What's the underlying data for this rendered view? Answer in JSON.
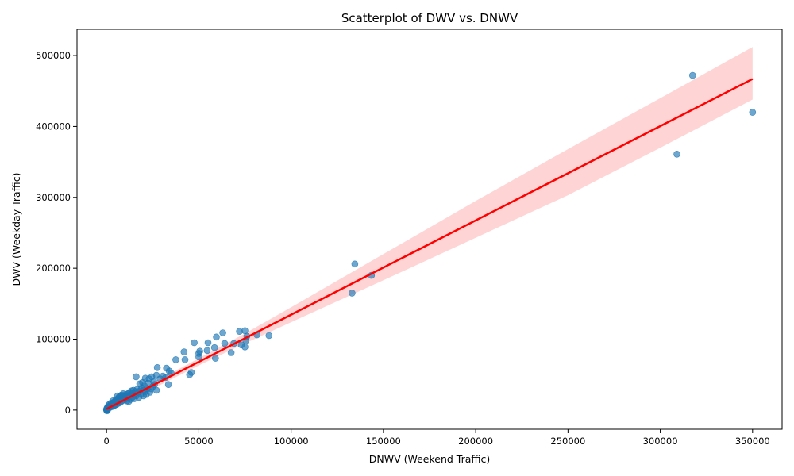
{
  "chart_data": {
    "type": "scatter",
    "title": "Scatterplot of DWV vs. DNWV",
    "xlabel": "DNWV (Weekend Traffic)",
    "ylabel": "DWV (Weekday Traffic)",
    "xlim": [
      -16000,
      366000
    ],
    "ylim": [
      -27000,
      537000
    ],
    "xticks": [
      0,
      50000,
      100000,
      150000,
      200000,
      250000,
      300000,
      350000
    ],
    "xtick_labels": [
      "0",
      "50000",
      "100000",
      "150000",
      "200000",
      "250000",
      "300000",
      "350000"
    ],
    "yticks": [
      0,
      100000,
      200000,
      300000,
      400000,
      500000
    ],
    "ytick_labels": [
      "0",
      "100000",
      "200000",
      "300000",
      "400000",
      "500000"
    ],
    "grid": false,
    "colors": {
      "points": "#1f77b4",
      "regression": "#ff0000",
      "confidence_band": "#ffcccc"
    },
    "regression": {
      "slope": 1.33,
      "intercept": 1500,
      "x_range": [
        0,
        350000
      ]
    },
    "confidence_band": [
      {
        "x": 0,
        "lower": -1500,
        "upper": 4500
      },
      {
        "x": 25000,
        "lower": 30000,
        "upper": 38000
      },
      {
        "x": 50000,
        "lower": 63000,
        "upper": 73000
      },
      {
        "x": 75000,
        "lower": 94000,
        "upper": 108000
      },
      {
        "x": 100000,
        "lower": 124000,
        "upper": 145000
      },
      {
        "x": 150000,
        "lower": 183000,
        "upper": 220000
      },
      {
        "x": 200000,
        "lower": 243000,
        "upper": 295000
      },
      {
        "x": 250000,
        "lower": 303000,
        "upper": 368000
      },
      {
        "x": 300000,
        "lower": 370000,
        "upper": 440000
      },
      {
        "x": 350000,
        "lower": 438000,
        "upper": 512000
      }
    ],
    "points": [
      [
        350000,
        420000
      ],
      [
        317500,
        472000
      ],
      [
        309000,
        361000
      ],
      [
        143500,
        190000
      ],
      [
        134500,
        206000
      ],
      [
        133000,
        165000
      ],
      [
        88000,
        105000
      ],
      [
        81500,
        106000
      ],
      [
        76000,
        104000
      ],
      [
        75000,
        112000
      ],
      [
        75500,
        98000
      ],
      [
        75000,
        89000
      ],
      [
        73000,
        92000
      ],
      [
        72000,
        111000
      ],
      [
        69000,
        94000
      ],
      [
        67500,
        81000
      ],
      [
        64000,
        94000
      ],
      [
        63000,
        109000
      ],
      [
        59500,
        103000
      ],
      [
        59000,
        73000
      ],
      [
        58500,
        88000
      ],
      [
        55000,
        95000
      ],
      [
        54500,
        84000
      ],
      [
        50500,
        83000
      ],
      [
        50000,
        80000
      ],
      [
        50000,
        75000
      ],
      [
        47500,
        95000
      ],
      [
        46000,
        53000
      ],
      [
        45000,
        50000
      ],
      [
        42500,
        71000
      ],
      [
        42000,
        82000
      ],
      [
        37500,
        71000
      ],
      [
        35000,
        52000
      ],
      [
        34000,
        55000
      ],
      [
        33500,
        36000
      ],
      [
        32500,
        59000
      ],
      [
        32000,
        46000
      ],
      [
        30500,
        48000
      ],
      [
        29000,
        44000
      ],
      [
        27500,
        60000
      ],
      [
        27000,
        49000
      ],
      [
        27000,
        28000
      ],
      [
        26000,
        36000
      ],
      [
        25500,
        40000
      ],
      [
        25000,
        33000
      ],
      [
        24500,
        47000
      ],
      [
        24000,
        30000
      ],
      [
        23500,
        25000
      ],
      [
        23000,
        44000
      ],
      [
        22500,
        38000
      ],
      [
        22000,
        30000
      ],
      [
        21500,
        22000
      ],
      [
        21000,
        45000
      ],
      [
        21000,
        26000
      ],
      [
        20500,
        34000
      ],
      [
        20000,
        28000
      ],
      [
        20000,
        20000
      ],
      [
        19500,
        39000
      ],
      [
        19000,
        31000
      ],
      [
        18500,
        22000
      ],
      [
        18000,
        37000
      ],
      [
        18000,
        27000
      ],
      [
        17500,
        18000
      ],
      [
        17000,
        25000
      ],
      [
        16500,
        29000
      ],
      [
        16000,
        47000
      ],
      [
        16000,
        20000
      ],
      [
        15500,
        26000
      ],
      [
        15000,
        16000
      ],
      [
        15000,
        22000
      ],
      [
        14500,
        28000
      ],
      [
        14000,
        18000
      ],
      [
        14000,
        24000
      ],
      [
        13500,
        27000
      ],
      [
        13000,
        21000
      ],
      [
        13000,
        15000
      ],
      [
        12500,
        25000
      ],
      [
        12000,
        19000
      ],
      [
        12000,
        12000
      ],
      [
        11500,
        23000
      ],
      [
        11000,
        17000
      ],
      [
        11000,
        13000
      ],
      [
        10500,
        22000
      ],
      [
        10000,
        19000
      ],
      [
        10000,
        15000
      ],
      [
        9500,
        20000
      ],
      [
        9000,
        23000
      ],
      [
        9000,
        14000
      ],
      [
        8500,
        18000
      ],
      [
        8000,
        12000
      ],
      [
        8000,
        21000
      ],
      [
        7500,
        16000
      ],
      [
        7000,
        19000
      ],
      [
        7000,
        10000
      ],
      [
        6500,
        17000
      ],
      [
        6500,
        13000
      ],
      [
        6000,
        20000
      ],
      [
        6000,
        11000
      ],
      [
        5500,
        15000
      ],
      [
        5500,
        8000
      ],
      [
        5000,
        14000
      ],
      [
        5000,
        10000
      ],
      [
        4500,
        12000
      ],
      [
        4500,
        7000
      ],
      [
        4000,
        11000
      ],
      [
        4000,
        6000
      ],
      [
        3500,
        9000
      ],
      [
        3500,
        13000
      ],
      [
        3000,
        8000
      ],
      [
        3000,
        5000
      ],
      [
        2500,
        7000
      ],
      [
        2500,
        10000
      ],
      [
        2000,
        6000
      ],
      [
        2000,
        4000
      ],
      [
        1500,
        5000
      ],
      [
        1500,
        8000
      ],
      [
        1000,
        3000
      ],
      [
        1000,
        6000
      ],
      [
        800,
        2000
      ],
      [
        600,
        4000
      ],
      [
        400,
        1000
      ],
      [
        300,
        3000
      ],
      [
        200,
        500
      ],
      [
        100,
        1500
      ],
      [
        0,
        0
      ],
      [
        0,
        800
      ],
      [
        200,
        -1000
      ],
      [
        500,
        200
      ]
    ]
  }
}
